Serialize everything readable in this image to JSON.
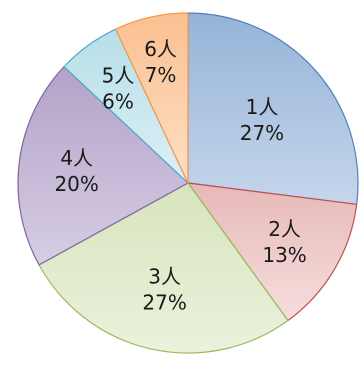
{
  "chart_data": {
    "type": "pie",
    "title": "",
    "categories": [
      "1人",
      "2人",
      "3人",
      "4人",
      "5人",
      "6人"
    ],
    "values": [
      27,
      13,
      27,
      20,
      6,
      7
    ],
    "percent_labels": [
      "27%",
      "13%",
      "27%",
      "20%",
      "6%",
      "7%"
    ],
    "colors": [
      "#95b3d7",
      "#e6b9b8",
      "#d7e4bd",
      "#b3a2c7",
      "#b7dee8",
      "#fac090"
    ],
    "gradient_light": [
      "#c5d6ec",
      "#f6dedd",
      "#ebf2dc",
      "#d7cde5",
      "#dcf0f5",
      "#fde0c6"
    ],
    "edge_colors": [
      "#4f81bd",
      "#c0504d",
      "#9bbb59",
      "#8064a2",
      "#4bacc6",
      "#f79646"
    ],
    "start_angle_deg": 90,
    "direction": "clockwise",
    "legend": "none"
  }
}
